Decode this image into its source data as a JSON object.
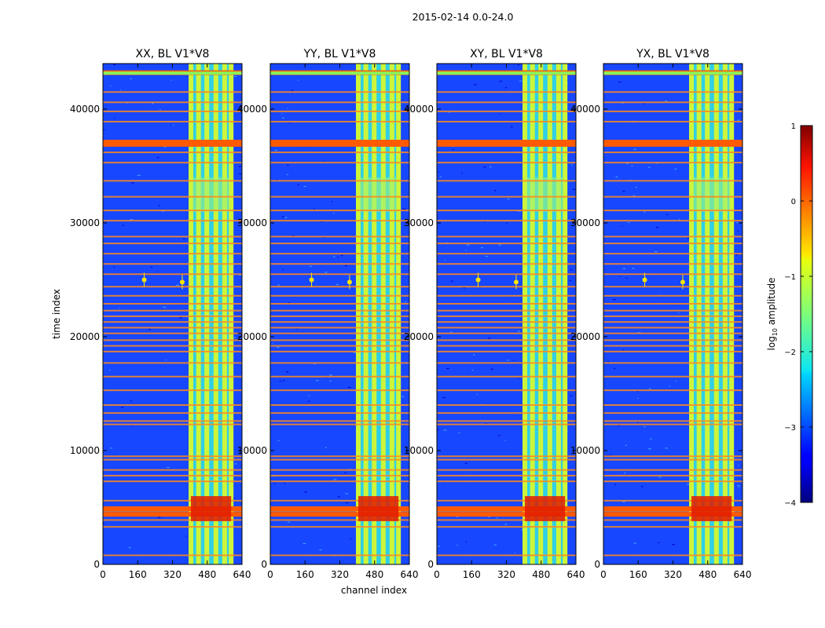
{
  "chart_data": {
    "type": "heatmap",
    "title": "2015-02-14 0.0-24.0",
    "xlabel": "channel index",
    "ylabel": "time index",
    "xlim": [
      0,
      640
    ],
    "ylim": [
      0,
      44000
    ],
    "xticks": [
      "0",
      "160",
      "320",
      "480",
      "640"
    ],
    "yticks": [
      "0",
      "10000",
      "20000",
      "30000",
      "40000"
    ],
    "panels": [
      {
        "title": "XX, BL V1*V8"
      },
      {
        "title": "YY, BL V1*V8"
      },
      {
        "title": "XY, BL V1*V8"
      },
      {
        "title": "YX, BL V1*V8"
      }
    ],
    "colorbar": {
      "label": "log10 amplitude",
      "label_base": "log",
      "label_sub": "10",
      "label_rest": " amplitude",
      "range": [
        -4,
        1
      ],
      "ticks": [
        "1",
        "0",
        "−1",
        "−2",
        "−3",
        "−4"
      ],
      "colormap": "jet"
    },
    "features": {
      "rfi_band_channels": [
        405,
        590
      ],
      "rfi_lines_channels": [
        405,
        440,
        478,
        520,
        560,
        590
      ],
      "flagged_time_rows": [
        800,
        3300,
        3900,
        4300,
        4700,
        5600,
        7300,
        7800,
        8300,
        9200,
        9500,
        12300,
        12600,
        13300,
        14000,
        15300,
        16500,
        17700,
        18700,
        19200,
        19700,
        20300,
        20800,
        21300,
        21800,
        22300,
        22900,
        23600,
        24400,
        25500,
        26400,
        27300,
        28200,
        28800,
        30200,
        31100,
        32300,
        33700,
        35300,
        36200,
        38900,
        39800,
        40600,
        41500,
        43300
      ],
      "saturated_time_rows": [
        36900,
        37100,
        4400,
        4900,
        43200
      ],
      "sources": [
        {
          "channel": 190,
          "time": 25000
        },
        {
          "channel": 365,
          "time": 24800
        }
      ]
    }
  }
}
